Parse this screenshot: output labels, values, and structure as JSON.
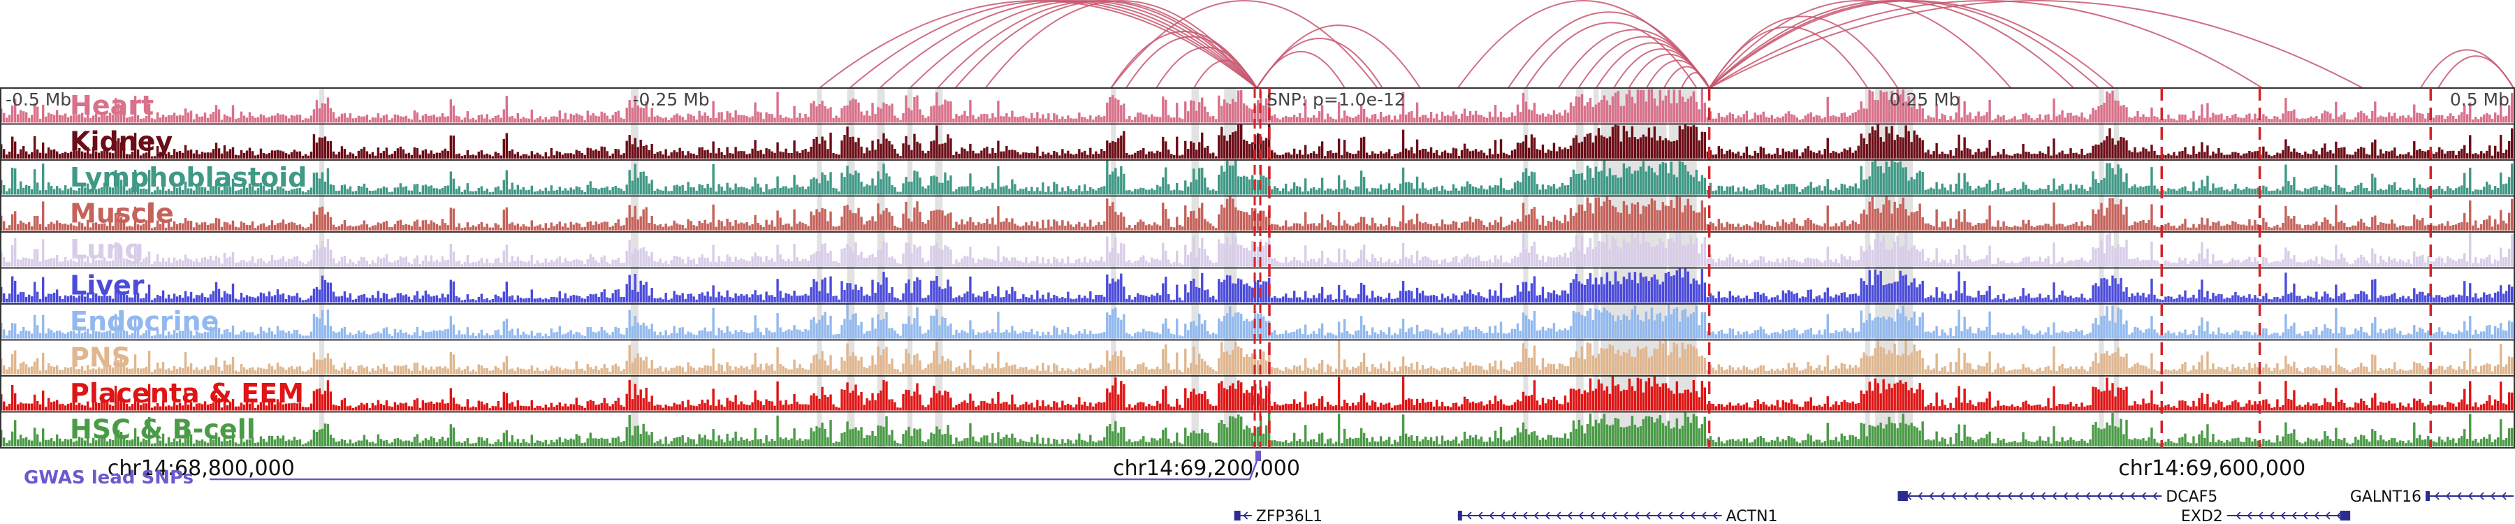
{
  "region": {
    "start": 68720000,
    "end": 69720000,
    "lead_snp": 69220000
  },
  "colors": {
    "arc": "#c8566e",
    "highlight": "#d8d8d8",
    "dashed": "#d2232a",
    "gwas": "#6a5acd",
    "gene": "#2d2d8f",
    "track_border": "#333333"
  },
  "scale_labels": [
    {
      "text": "-0.5 Mb",
      "pos": 68720000
    },
    {
      "text": "-0.25 Mb",
      "pos": 68970000
    },
    {
      "text": "0.25 Mb",
      "pos": 69470000
    },
    {
      "text": "0.5 Mb",
      "pos": 69720000
    }
  ],
  "snp_label": "SNP: p=1.0e-12",
  "tracks": [
    {
      "name": "Heart",
      "color": "#d9718a"
    },
    {
      "name": "Kidney",
      "color": "#6b0d16"
    },
    {
      "name": "Lymphoblastoid",
      "color": "#3f9986"
    },
    {
      "name": "Muscle",
      "color": "#c5625a"
    },
    {
      "name": "Lung",
      "color": "#d8cde9"
    },
    {
      "name": "Liver",
      "color": "#4b4bdc"
    },
    {
      "name": "Endocrine",
      "color": "#92b9ef"
    },
    {
      "name": "PNS",
      "color": "#e0b68e"
    },
    {
      "name": "Placenta & EEM",
      "color": "#e01414"
    },
    {
      "name": "HSC & B-cell",
      "color": "#4a9b46"
    }
  ],
  "highlights": [
    [
      68847000,
      68849000
    ],
    [
      68971000,
      68974000
    ],
    [
      69045000,
      69047000
    ],
    [
      69057000,
      69060000
    ],
    [
      69069000,
      69072000
    ],
    [
      69081000,
      69083000
    ],
    [
      69092000,
      69095000
    ],
    [
      69162000,
      69164000
    ],
    [
      69194000,
      69197000
    ],
    [
      69207000,
      69212000
    ],
    [
      69326000,
      69328000
    ],
    [
      69347000,
      69350000
    ],
    [
      69354000,
      69356000
    ],
    [
      69357000,
      69361000
    ],
    [
      69361000,
      69363000
    ],
    [
      69363000,
      69369000
    ],
    [
      69369000,
      69374000
    ],
    [
      69374000,
      69380000
    ],
    [
      69380000,
      69383000
    ],
    [
      69384000,
      69391000
    ],
    [
      69391000,
      69395000
    ],
    [
      69462000,
      69464000
    ],
    [
      69466000,
      69469000
    ],
    [
      69469000,
      69474000
    ],
    [
      69475000,
      69481000
    ],
    [
      69555000,
      69557000
    ],
    [
      69561000,
      69563000
    ]
  ],
  "dashed_lines": [
    69225000,
    69400000,
    69580000,
    69619000,
    69687000
  ],
  "arcs": [
    {
      "from": 69046000,
      "to": 69220000
    },
    {
      "from": 69058000,
      "to": 69220000
    },
    {
      "from": 69070000,
      "to": 69220000
    },
    {
      "from": 69082000,
      "to": 69220000
    },
    {
      "from": 69093000,
      "to": 69220000
    },
    {
      "from": 69100000,
      "to": 69220000
    },
    {
      "from": 69112000,
      "to": 69220000
    },
    {
      "from": 69162000,
      "to": 69220000
    },
    {
      "from": 69168000,
      "to": 69220000
    },
    {
      "from": 69180000,
      "to": 69220000
    },
    {
      "from": 69195000,
      "to": 69220000
    },
    {
      "from": 69220000,
      "to": 69255000
    },
    {
      "from": 69220000,
      "to": 69270000
    },
    {
      "from": 69220000,
      "to": 69285000
    },
    {
      "from": 69162000,
      "to": 69268000
    },
    {
      "from": 69300000,
      "to": 69400000
    },
    {
      "from": 69320000,
      "to": 69400000
    },
    {
      "from": 69327000,
      "to": 69395000
    },
    {
      "from": 69340000,
      "to": 69400000
    },
    {
      "from": 69348000,
      "to": 69400000
    },
    {
      "from": 69355000,
      "to": 69400000
    },
    {
      "from": 69362000,
      "to": 69400000
    },
    {
      "from": 69368000,
      "to": 69400000
    },
    {
      "from": 69375000,
      "to": 69400000
    },
    {
      "from": 69382000,
      "to": 69400000
    },
    {
      "from": 69389000,
      "to": 69400000
    },
    {
      "from": 69400000,
      "to": 69463000
    },
    {
      "from": 69400000,
      "to": 69475000
    },
    {
      "from": 69400000,
      "to": 69520000
    },
    {
      "from": 69400000,
      "to": 69545000
    },
    {
      "from": 69400000,
      "to": 69555000
    },
    {
      "from": 69400000,
      "to": 69561000
    },
    {
      "from": 69400000,
      "to": 69620000
    },
    {
      "from": 69400000,
      "to": 69660000
    },
    {
      "from": 69683000,
      "to": 69720000
    },
    {
      "from": 69690000,
      "to": 69720000
    }
  ],
  "coordinates": [
    {
      "text": "chr14:68,800,000",
      "pos": 68800000
    },
    {
      "text": "chr14:69,200,000",
      "pos": 69200000
    },
    {
      "text": "chr14:69,600,000",
      "pos": 69600000
    }
  ],
  "gwas_label": "GWAS lead SNPs",
  "genes": [
    {
      "name": "ZFP36L1",
      "start": 69211000,
      "end": 69218000,
      "row": 1,
      "label_side": "right",
      "thick": [
        69211000,
        69213500
      ]
    },
    {
      "name": "ACTN1",
      "start": 69300000,
      "end": 69405000,
      "row": 1,
      "label_side": "right",
      "thick": [
        69300000,
        69301500
      ]
    },
    {
      "name": "DCAF5",
      "start": 69475000,
      "end": 69580000,
      "row": 0,
      "label_side": "right",
      "thick": [
        69475000,
        69479000
      ]
    },
    {
      "name": "EXD2",
      "start": 69606000,
      "end": 69655000,
      "row": 1,
      "label_side": "left",
      "thick": [
        69651000,
        69655000
      ]
    },
    {
      "name": "GALNT16",
      "start": 69685000,
      "end": 69720000,
      "row": 0,
      "label_side": "left",
      "thick": [
        69685000,
        69686500
      ]
    }
  ]
}
